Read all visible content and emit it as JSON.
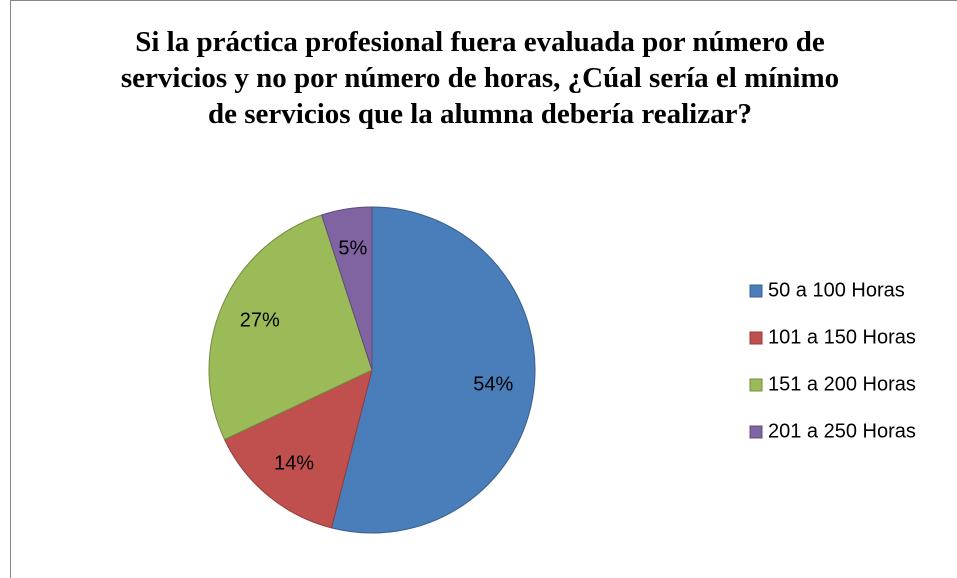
{
  "chart_data": {
    "type": "pie",
    "title": "Si la práctica profesional fuera evaluada por número de servicios y no por número de horas, ¿Cúal sería el mínimo de servicios que la alumna debería realizar?",
    "categories": [
      "50 a 100 Horas",
      "101 a 150 Horas",
      "151 a 200 Horas",
      "201 a 250 Horas"
    ],
    "values": [
      54,
      14,
      27,
      5
    ],
    "value_labels": [
      "54%",
      "14%",
      "27%",
      "5%"
    ],
    "colors": [
      "#4a7ebb",
      "#c0504d",
      "#9bbb59",
      "#8064a2"
    ],
    "legend": "right"
  }
}
